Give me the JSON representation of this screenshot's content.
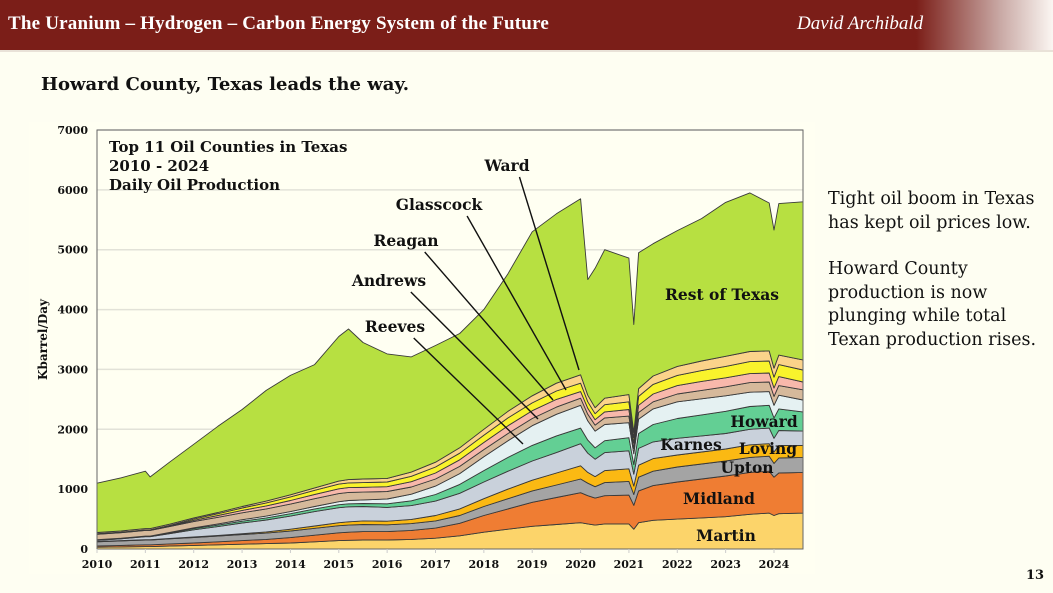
{
  "header": {
    "title": "The Uranium – Hydrogen – Carbon Energy System of the Future",
    "author": "David Archibald"
  },
  "slide": {
    "subtitle": "Howard County, Texas leads the way.",
    "side_paragraphs": [
      "Tight oil boom in Texas has kept oil prices low.",
      "Howard County production is now plunging while total Texan production rises."
    ],
    "page_number": "13"
  },
  "chart_data": {
    "type": "area",
    "stacked": true,
    "title_lines": [
      "Top 11 Oil Counties in Texas",
      "2010 - 2024",
      "Daily Oil Production"
    ],
    "xlabel": "",
    "ylabel": "Kbarrel/Day",
    "xlim": [
      2010,
      2024.6
    ],
    "ylim": [
      0,
      7000
    ],
    "yticks": [
      0,
      1000,
      2000,
      3000,
      4000,
      5000,
      6000,
      7000
    ],
    "xticks": [
      "2010",
      "2011",
      "2012",
      "2013",
      "2014",
      "2015",
      "2016",
      "2017",
      "2018",
      "2019",
      "2020",
      "2021",
      "2022",
      "2023",
      "2024"
    ],
    "grid": "horizontal",
    "x": [
      2010,
      2010.5,
      2011,
      2011.1,
      2011.5,
      2012,
      2012.5,
      2013,
      2013.5,
      2014,
      2014.5,
      2015,
      2015.2,
      2015.5,
      2016,
      2016.5,
      2017,
      2017.5,
      2018,
      2018.5,
      2019,
      2019.5,
      2020,
      2020.15,
      2020.3,
      2020.5,
      2021,
      2021.1,
      2021.2,
      2021.5,
      2022,
      2022.5,
      2023,
      2023.5,
      2023.9,
      2024,
      2024.1,
      2024.6
    ],
    "series": [
      {
        "name": "Martin",
        "color": "#fcd46a",
        "values": [
          30,
          35,
          40,
          40,
          50,
          60,
          70,
          80,
          90,
          100,
          120,
          140,
          145,
          150,
          150,
          160,
          180,
          220,
          280,
          330,
          380,
          410,
          440,
          420,
          400,
          420,
          420,
          330,
          440,
          480,
          500,
          520,
          540,
          580,
          600,
          560,
          590,
          600
        ]
      },
      {
        "name": "Midland",
        "color": "#ef7d33",
        "values": [
          20,
          25,
          30,
          30,
          35,
          40,
          50,
          60,
          70,
          90,
          110,
          130,
          135,
          140,
          140,
          150,
          170,
          210,
          280,
          340,
          400,
          450,
          500,
          470,
          450,
          470,
          480,
          400,
          530,
          580,
          620,
          650,
          680,
          700,
          700,
          640,
          680,
          680
        ]
      },
      {
        "name": "Upton",
        "color": "#a4a4a4",
        "values": [
          70,
          75,
          80,
          80,
          85,
          90,
          95,
          100,
          105,
          110,
          115,
          120,
          120,
          120,
          115,
          115,
          120,
          130,
          150,
          170,
          190,
          210,
          230,
          210,
          190,
          220,
          230,
          180,
          230,
          240,
          250,
          250,
          250,
          250,
          250,
          230,
          250,
          250
        ]
      },
      {
        "name": "Loving",
        "color": "#fbb913",
        "values": [
          5,
          5,
          5,
          5,
          5,
          10,
          10,
          15,
          20,
          30,
          40,
          50,
          55,
          60,
          60,
          70,
          90,
          110,
          130,
          160,
          180,
          200,
          220,
          180,
          170,
          200,
          210,
          140,
          200,
          210,
          200,
          200,
          200,
          210,
          210,
          190,
          210,
          200
        ]
      },
      {
        "name": "Karnes",
        "color": "#c9d1db",
        "values": [
          20,
          30,
          50,
          50,
          80,
          120,
          150,
          180,
          200,
          220,
          240,
          250,
          250,
          240,
          230,
          230,
          240,
          260,
          280,
          300,
          320,
          340,
          370,
          320,
          290,
          300,
          300,
          200,
          280,
          280,
          280,
          270,
          260,
          260,
          260,
          230,
          250,
          240
        ]
      },
      {
        "name": "Howard",
        "color": "#63cf94",
        "values": [
          5,
          5,
          5,
          5,
          10,
          20,
          25,
          30,
          35,
          40,
          45,
          50,
          50,
          50,
          60,
          80,
          110,
          150,
          190,
          230,
          260,
          280,
          260,
          220,
          190,
          200,
          220,
          160,
          250,
          290,
          330,
          350,
          370,
          380,
          380,
          340,
          360,
          320
        ]
      },
      {
        "name": "Reeves",
        "color": "#e5f1f2",
        "values": [
          5,
          5,
          5,
          5,
          10,
          15,
          20,
          25,
          30,
          35,
          40,
          50,
          55,
          60,
          80,
          110,
          140,
          180,
          230,
          280,
          330,
          360,
          380,
          320,
          280,
          270,
          250,
          180,
          240,
          260,
          280,
          270,
          260,
          240,
          230,
          210,
          230,
          200
        ]
      },
      {
        "name": "Andrews",
        "color": "#d6b99b",
        "values": [
          90,
          92,
          95,
          95,
          100,
          105,
          110,
          115,
          120,
          125,
          130,
          135,
          135,
          130,
          125,
          120,
          120,
          120,
          120,
          120,
          120,
          120,
          120,
          110,
          100,
          110,
          110,
          90,
          110,
          120,
          130,
          140,
          150,
          160,
          160,
          150,
          160,
          170
        ]
      },
      {
        "name": "Reagan",
        "color": "#f8b8ab",
        "values": [
          5,
          5,
          5,
          5,
          10,
          20,
          30,
          40,
          50,
          60,
          70,
          80,
          80,
          80,
          80,
          90,
          100,
          110,
          120,
          130,
          130,
          130,
          110,
          100,
          90,
          100,
          110,
          90,
          120,
          130,
          140,
          150,
          150,
          150,
          150,
          140,
          150,
          130
        ]
      },
      {
        "name": "Glasscock",
        "color": "#f9f32c",
        "values": [
          5,
          5,
          5,
          5,
          10,
          20,
          30,
          40,
          50,
          60,
          70,
          80,
          80,
          80,
          80,
          90,
          100,
          110,
          120,
          130,
          130,
          140,
          140,
          110,
          100,
          120,
          130,
          90,
          150,
          160,
          170,
          180,
          190,
          200,
          200,
          180,
          200,
          200
        ]
      },
      {
        "name": "Ward",
        "color": "#fbd38a",
        "values": [
          20,
          20,
          20,
          20,
          20,
          20,
          20,
          25,
          30,
          35,
          40,
          50,
          55,
          60,
          60,
          70,
          80,
          90,
          100,
          110,
          120,
          130,
          140,
          110,
          100,
          110,
          120,
          90,
          130,
          140,
          150,
          160,
          170,
          170,
          170,
          150,
          160,
          170
        ]
      },
      {
        "name": "Rest of Texas",
        "color": "#b7e041",
        "values": [
          825,
          888,
          960,
          865,
          1035,
          1230,
          1440,
          1620,
          1850,
          1995,
          2060,
          2415,
          2515,
          2280,
          2080,
          1925,
          1950,
          1910,
          2000,
          2300,
          2740,
          2830,
          2940,
          1930,
          2330,
          2480,
          2280,
          1800,
          2270,
          2210,
          2270,
          2380,
          2570,
          2650,
          2470,
          2310,
          2530,
          2640
        ]
      }
    ],
    "annotations": [
      {
        "text": "Rest of Texas",
        "series": "Rest of Texas"
      },
      {
        "text": "Ward",
        "series": "Ward",
        "leader_line": true
      },
      {
        "text": "Glasscock",
        "series": "Glasscock",
        "leader_line": true
      },
      {
        "text": "Reagan",
        "series": "Reagan",
        "leader_line": true
      },
      {
        "text": "Andrews",
        "series": "Andrews",
        "leader_line": true
      },
      {
        "text": "Reeves",
        "series": "Reeves",
        "leader_line": true
      },
      {
        "text": "Howard",
        "series": "Howard"
      },
      {
        "text": "Karnes",
        "series": "Karnes"
      },
      {
        "text": "Loving",
        "series": "Loving"
      },
      {
        "text": "Upton",
        "series": "Upton"
      },
      {
        "text": "Midland",
        "series": "Midland"
      },
      {
        "text": "Martin",
        "series": "Martin"
      }
    ]
  }
}
